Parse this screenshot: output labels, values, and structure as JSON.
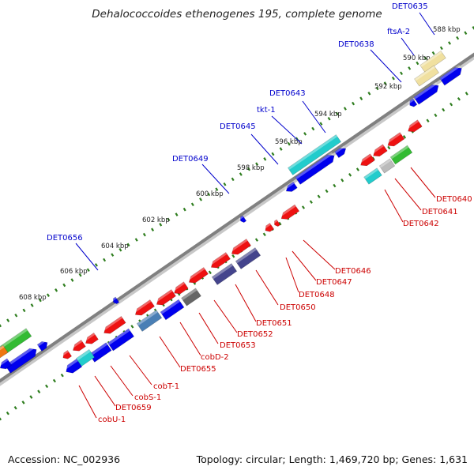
{
  "title": "Dehalococcoides ethenogenes 195, complete genome",
  "footer": {
    "accession": "Accession: NC_002936",
    "summary": "Topology: circular; Length: 1,469,720 bp; Genes: 1,631"
  },
  "colors": {
    "backbone": "#808080",
    "tick": "#2e7d1e",
    "forward_label": "#0000cc",
    "reverse_label": "#cc0000"
  },
  "kbp_ticks": [
    "588 kbp",
    "590 kbp",
    "592 kbp",
    "594 kbp",
    "596 kbp",
    "598 kbp",
    "600 kbp",
    "602 kbp",
    "604 kbp",
    "606 kbp",
    "608 kbp"
  ],
  "forward_labels": [
    "DET0635",
    "ftsA-2",
    "DET0638",
    "DET0643",
    "tkt-1",
    "DET0645",
    "DET0649",
    "DET0656"
  ],
  "reverse_labels": [
    "DET0640",
    "DET0641",
    "DET0642",
    "DET0646",
    "DET0647",
    "DET0648",
    "DET0650",
    "DET0651",
    "DET0652",
    "DET0653",
    "cobD-2",
    "DET0655",
    "cobT-1",
    "DET0659",
    "cobS-1",
    "cobU-1"
  ]
}
